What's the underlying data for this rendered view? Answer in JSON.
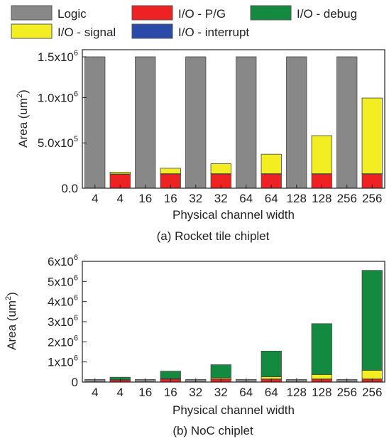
{
  "legend": {
    "items": [
      {
        "label": "Logic",
        "color": "#888888"
      },
      {
        "label": "I/O - P/G",
        "color": "#ee2222"
      },
      {
        "label": "I/O - debug",
        "color": "#138a3f"
      },
      {
        "label": "I/O - signal",
        "color": "#f2ee22"
      },
      {
        "label": "I/O - interrupt",
        "color": "#2a4aaa"
      }
    ]
  },
  "chart_data": [
    {
      "type": "bar",
      "stacked": true,
      "title": "(a) Rocket tile chiplet",
      "xlabel": "Physical channel width",
      "ylabel_main": "Area (um",
      "ylabel_sup": "2",
      "ylabel_end": ")",
      "categories": [
        "4",
        "4",
        "16",
        "16",
        "32",
        "32",
        "64",
        "64",
        "128",
        "128",
        "256",
        "256"
      ],
      "ylim": [
        0,
        1450000
      ],
      "yticks": [
        {
          "value": 0,
          "base": "0.0",
          "exp": ""
        },
        {
          "value": 500000,
          "base": "5.0x10",
          "exp": "5"
        },
        {
          "value": 1000000,
          "base": "1.0x10",
          "exp": "6"
        },
        {
          "value": 1450000,
          "base": "1.5x10",
          "exp": "6"
        }
      ],
      "series": [
        {
          "name": "Logic",
          "color": "#888888",
          "values": [
            1450000,
            0,
            1450000,
            0,
            1450000,
            0,
            1450000,
            0,
            1450000,
            0,
            1450000,
            0
          ]
        },
        {
          "name": "I/O - P/G",
          "color": "#ee2222",
          "values": [
            0,
            155000,
            0,
            158000,
            0,
            158000,
            0,
            158000,
            0,
            158000,
            0,
            158000
          ]
        },
        {
          "name": "I/O - interrupt",
          "color": "#2a4aaa",
          "values": [
            0,
            2000,
            0,
            2000,
            0,
            2000,
            0,
            2000,
            0,
            2000,
            0,
            2000
          ]
        },
        {
          "name": "I/O - signal",
          "color": "#f2ee22",
          "values": [
            0,
            20000,
            0,
            60000,
            0,
            110000,
            0,
            215000,
            0,
            420000,
            0,
            835000
          ]
        },
        {
          "name": "I/O - debug",
          "color": "#138a3f",
          "values": [
            0,
            0,
            0,
            0,
            0,
            0,
            0,
            0,
            0,
            0,
            0,
            0
          ]
        }
      ]
    },
    {
      "type": "bar",
      "stacked": true,
      "title": "(b) NoC chiplet",
      "xlabel": "Physical channel width",
      "ylabel_main": "Area (um",
      "ylabel_sup": "2",
      "ylabel_end": ")",
      "categories": [
        "4",
        "4",
        "16",
        "16",
        "32",
        "32",
        "64",
        "64",
        "128",
        "128",
        "256",
        "256"
      ],
      "ylim": [
        0,
        6000000
      ],
      "yticks": [
        {
          "value": 0,
          "base": "0",
          "exp": ""
        },
        {
          "value": 1000000,
          "base": "1x10",
          "exp": "6"
        },
        {
          "value": 2000000,
          "base": "2x10",
          "exp": "6"
        },
        {
          "value": 3000000,
          "base": "3x10",
          "exp": "6"
        },
        {
          "value": 4000000,
          "base": "4x10",
          "exp": "6"
        },
        {
          "value": 5000000,
          "base": "5x10",
          "exp": "6"
        },
        {
          "value": 6000000,
          "base": "6x10",
          "exp": "6"
        }
      ],
      "series": [
        {
          "name": "Logic",
          "color": "#888888",
          "values": [
            130000,
            0,
            130000,
            0,
            130000,
            0,
            130000,
            0,
            130000,
            0,
            130000,
            0
          ]
        },
        {
          "name": "I/O - P/G",
          "color": "#ee2222",
          "values": [
            0,
            110000,
            0,
            150000,
            0,
            150000,
            0,
            150000,
            0,
            150000,
            0,
            150000
          ]
        },
        {
          "name": "I/O - interrupt",
          "color": "#2a4aaa",
          "values": [
            0,
            5000,
            0,
            5000,
            0,
            5000,
            0,
            5000,
            0,
            5000,
            0,
            5000
          ]
        },
        {
          "name": "I/O - signal",
          "color": "#f2ee22",
          "values": [
            0,
            10000,
            0,
            30000,
            0,
            60000,
            0,
            110000,
            0,
            220000,
            0,
            430000
          ]
        },
        {
          "name": "I/O - debug",
          "color": "#138a3f",
          "values": [
            0,
            115000,
            0,
            355000,
            0,
            645000,
            0,
            1275000,
            0,
            2525000,
            0,
            4965000
          ]
        }
      ]
    }
  ]
}
